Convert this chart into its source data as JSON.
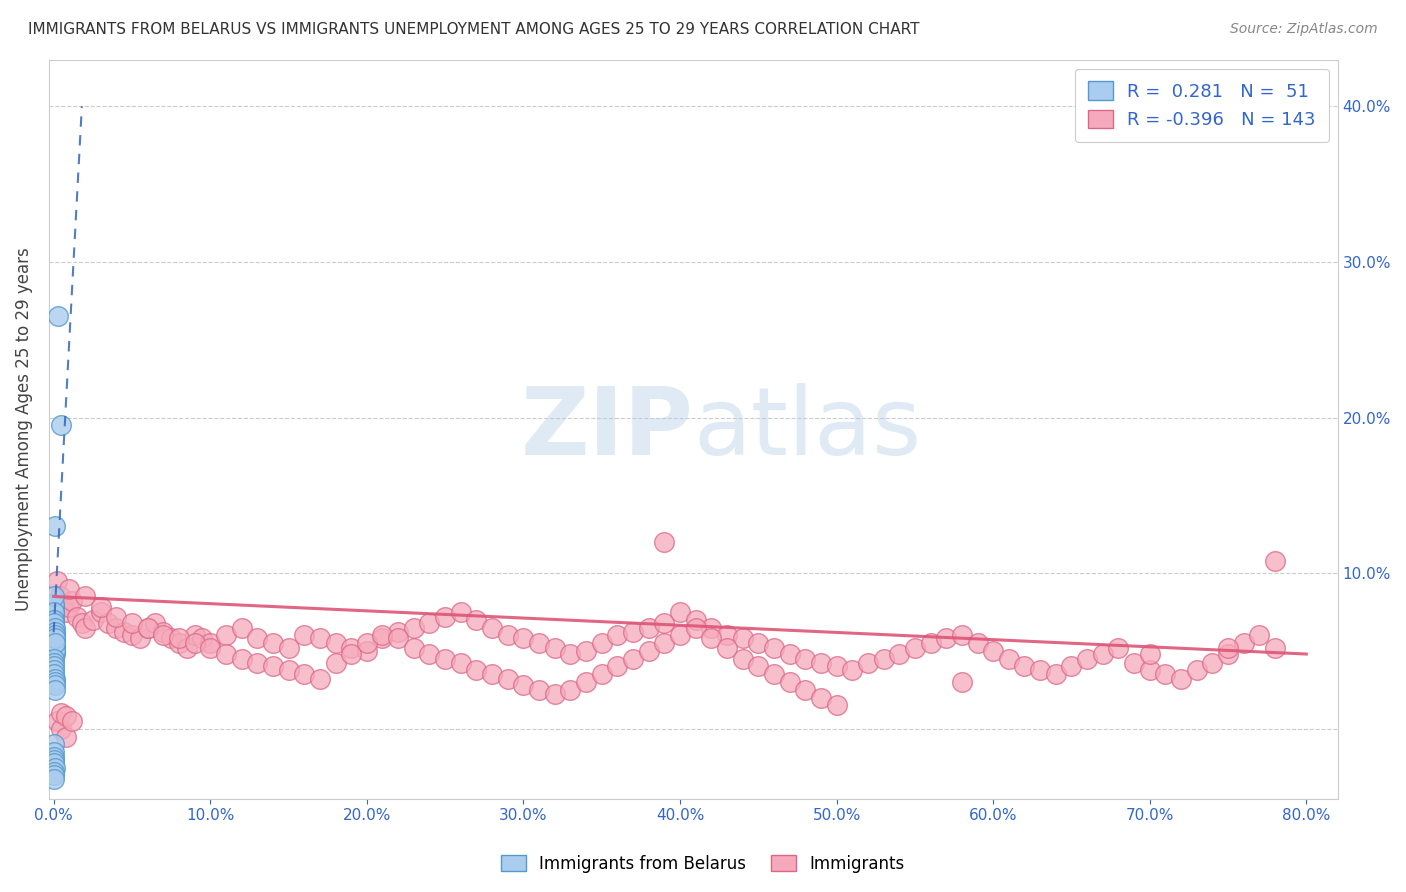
{
  "title": "IMMIGRANTS FROM BELARUS VS IMMIGRANTS UNEMPLOYMENT AMONG AGES 25 TO 29 YEARS CORRELATION CHART",
  "source": "Source: ZipAtlas.com",
  "ylabel": "Unemployment Among Ages 25 to 29 years",
  "watermark_zip": "ZIP",
  "watermark_atlas": "atlas",
  "blue_R": 0.281,
  "blue_N": 51,
  "pink_R": -0.396,
  "pink_N": 143,
  "blue_fill": "#aaccee",
  "blue_edge": "#5599cc",
  "pink_fill": "#f5aabb",
  "pink_edge": "#dd6688",
  "blue_line_color": "#3366bb",
  "pink_line_color": "#dd5577",
  "xlim": [
    -0.003,
    0.82
  ],
  "ylim": [
    -0.045,
    0.43
  ],
  "xticks": [
    0.0,
    0.1,
    0.2,
    0.3,
    0.4,
    0.5,
    0.6,
    0.7,
    0.8
  ],
  "yticks": [
    0.0,
    0.1,
    0.2,
    0.3,
    0.4
  ],
  "blue_trend_x0": 0.0,
  "blue_trend_y0": 0.062,
  "blue_trend_x1": 0.018,
  "blue_trend_y1": 0.4,
  "pink_trend_x0": 0.0,
  "pink_trend_y0": 0.085,
  "pink_trend_x1": 0.8,
  "pink_trend_y1": 0.048,
  "blue_pts_x": [
    0.0001,
    0.0002,
    0.0003,
    0.0004,
    0.0005,
    0.0006,
    0.0007,
    0.0008,
    0.0009,
    0.001,
    0.0001,
    0.0002,
    0.0003,
    0.0004,
    0.0005,
    0.0006,
    0.0007,
    0.0008,
    0.0009,
    0.001,
    0.0001,
    0.0002,
    0.0003,
    0.0004,
    0.0005,
    0.0006,
    0.0007,
    0.0008,
    0.0009,
    0.001,
    0.0001,
    0.0002,
    0.0003,
    0.0004,
    0.0005,
    0.0006,
    0.0007,
    0.0008,
    0.0009,
    0.0001,
    0.0002,
    0.0003,
    0.0004,
    0.0005,
    0.0006,
    0.0001,
    0.0002,
    0.0003,
    0.0008,
    0.003,
    0.005
  ],
  "blue_pts_y": [
    0.068,
    0.072,
    0.065,
    0.06,
    0.058,
    0.055,
    0.052,
    0.05,
    0.048,
    0.055,
    0.075,
    0.078,
    0.07,
    0.065,
    0.063,
    0.06,
    0.058,
    0.055,
    0.052,
    0.05,
    0.08,
    0.085,
    0.075,
    0.07,
    0.068,
    0.065,
    0.062,
    0.06,
    0.058,
    0.055,
    0.045,
    0.042,
    0.04,
    0.038,
    0.035,
    0.032,
    0.03,
    0.028,
    0.025,
    -0.01,
    -0.015,
    -0.018,
    -0.02,
    -0.022,
    -0.025,
    -0.028,
    -0.03,
    -0.032,
    0.13,
    0.265,
    0.195
  ],
  "pink_pts_x": [
    0.002,
    0.004,
    0.006,
    0.008,
    0.01,
    0.012,
    0.015,
    0.018,
    0.02,
    0.025,
    0.03,
    0.035,
    0.04,
    0.045,
    0.05,
    0.055,
    0.06,
    0.065,
    0.07,
    0.075,
    0.08,
    0.085,
    0.09,
    0.095,
    0.1,
    0.11,
    0.12,
    0.13,
    0.14,
    0.15,
    0.16,
    0.17,
    0.18,
    0.19,
    0.2,
    0.21,
    0.22,
    0.23,
    0.24,
    0.25,
    0.26,
    0.27,
    0.28,
    0.29,
    0.3,
    0.31,
    0.32,
    0.33,
    0.34,
    0.35,
    0.36,
    0.37,
    0.38,
    0.39,
    0.4,
    0.41,
    0.42,
    0.43,
    0.44,
    0.45,
    0.46,
    0.47,
    0.48,
    0.49,
    0.5,
    0.51,
    0.52,
    0.53,
    0.54,
    0.55,
    0.56,
    0.57,
    0.58,
    0.59,
    0.6,
    0.61,
    0.62,
    0.63,
    0.64,
    0.65,
    0.66,
    0.67,
    0.68,
    0.69,
    0.7,
    0.71,
    0.72,
    0.73,
    0.74,
    0.75,
    0.76,
    0.77,
    0.78,
    0.01,
    0.02,
    0.03,
    0.04,
    0.05,
    0.06,
    0.07,
    0.08,
    0.09,
    0.1,
    0.11,
    0.12,
    0.13,
    0.14,
    0.15,
    0.16,
    0.17,
    0.18,
    0.19,
    0.2,
    0.21,
    0.22,
    0.23,
    0.24,
    0.25,
    0.26,
    0.27,
    0.28,
    0.29,
    0.3,
    0.31,
    0.32,
    0.33,
    0.34,
    0.35,
    0.36,
    0.37,
    0.38,
    0.39,
    0.4,
    0.41,
    0.42,
    0.43,
    0.44,
    0.45,
    0.46,
    0.47,
    0.48,
    0.49,
    0.5,
    0.7,
    0.75,
    0.78,
    0.002,
    0.005,
    0.008,
    0.39,
    0.005,
    0.008,
    0.012,
    0.58
  ],
  "pink_pts_y": [
    0.095,
    0.085,
    0.08,
    0.075,
    0.078,
    0.082,
    0.072,
    0.068,
    0.065,
    0.07,
    0.075,
    0.068,
    0.065,
    0.062,
    0.06,
    0.058,
    0.065,
    0.068,
    0.062,
    0.058,
    0.055,
    0.052,
    0.06,
    0.058,
    0.055,
    0.06,
    0.065,
    0.058,
    0.055,
    0.052,
    0.06,
    0.058,
    0.055,
    0.052,
    0.05,
    0.058,
    0.062,
    0.065,
    0.068,
    0.072,
    0.075,
    0.07,
    0.065,
    0.06,
    0.058,
    0.055,
    0.052,
    0.048,
    0.05,
    0.055,
    0.06,
    0.062,
    0.065,
    0.068,
    0.075,
    0.07,
    0.065,
    0.06,
    0.058,
    0.055,
    0.052,
    0.048,
    0.045,
    0.042,
    0.04,
    0.038,
    0.042,
    0.045,
    0.048,
    0.052,
    0.055,
    0.058,
    0.06,
    0.055,
    0.05,
    0.045,
    0.04,
    0.038,
    0.035,
    0.04,
    0.045,
    0.048,
    0.052,
    0.042,
    0.038,
    0.035,
    0.032,
    0.038,
    0.042,
    0.048,
    0.055,
    0.06,
    0.052,
    0.09,
    0.085,
    0.078,
    0.072,
    0.068,
    0.065,
    0.06,
    0.058,
    0.055,
    0.052,
    0.048,
    0.045,
    0.042,
    0.04,
    0.038,
    0.035,
    0.032,
    0.042,
    0.048,
    0.055,
    0.06,
    0.058,
    0.052,
    0.048,
    0.045,
    0.042,
    0.038,
    0.035,
    0.032,
    0.028,
    0.025,
    0.022,
    0.025,
    0.03,
    0.035,
    0.04,
    0.045,
    0.05,
    0.055,
    0.06,
    0.065,
    0.058,
    0.052,
    0.045,
    0.04,
    0.035,
    0.03,
    0.025,
    0.02,
    0.015,
    0.048,
    0.052,
    0.108,
    0.005,
    0.0,
    -0.005,
    0.12,
    0.01,
    0.008,
    0.005,
    0.03
  ]
}
